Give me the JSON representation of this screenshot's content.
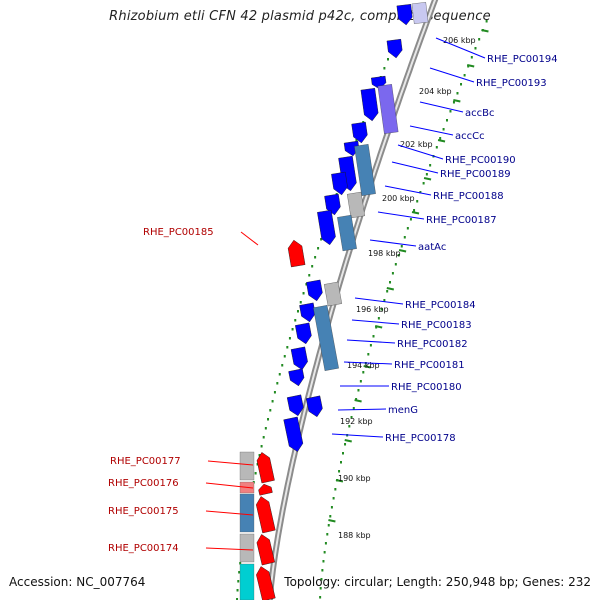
{
  "title": "Rhizobium etli CFN 42 plasmid p42c, complete sequence",
  "footer": {
    "accession": "Accession: NC_007764",
    "summary": "Topology: circular; Length: 250,948 bp; Genes: 232"
  },
  "colors": {
    "forward": "#0000ff",
    "reverse": "#ff0000",
    "label_forward": "#00008b",
    "label_reverse": "#b00000",
    "steelblue": "#4682b4",
    "grey": "#b8b8b8",
    "purple": "#7b68ee",
    "cyan": "#00ced1",
    "pink": "#f08080",
    "ruler_dot": "#228b22"
  },
  "ticks": [
    "206 kbp",
    "204 kbp",
    "202 kbp",
    "200 kbp",
    "198 kbp",
    "196 kbp",
    "194 kbp",
    "192 kbp",
    "190 kbp",
    "188 kbp"
  ],
  "forward_labels": [
    "RHE_PC00194",
    "RHE_PC00193",
    "accBc",
    "accCc",
    "RHE_PC00190",
    "RHE_PC00189",
    "RHE_PC00188",
    "RHE_PC00187",
    "aatAc",
    "RHE_PC00184",
    "RHE_PC00183",
    "RHE_PC00182",
    "RHE_PC00181",
    "RHE_PC00180",
    "menG",
    "RHE_PC00178"
  ],
  "reverse_labels": [
    "RHE_PC00185",
    "RHE_PC00177",
    "RHE_PC00176",
    "RHE_PC00175",
    "RHE_PC00174"
  ]
}
